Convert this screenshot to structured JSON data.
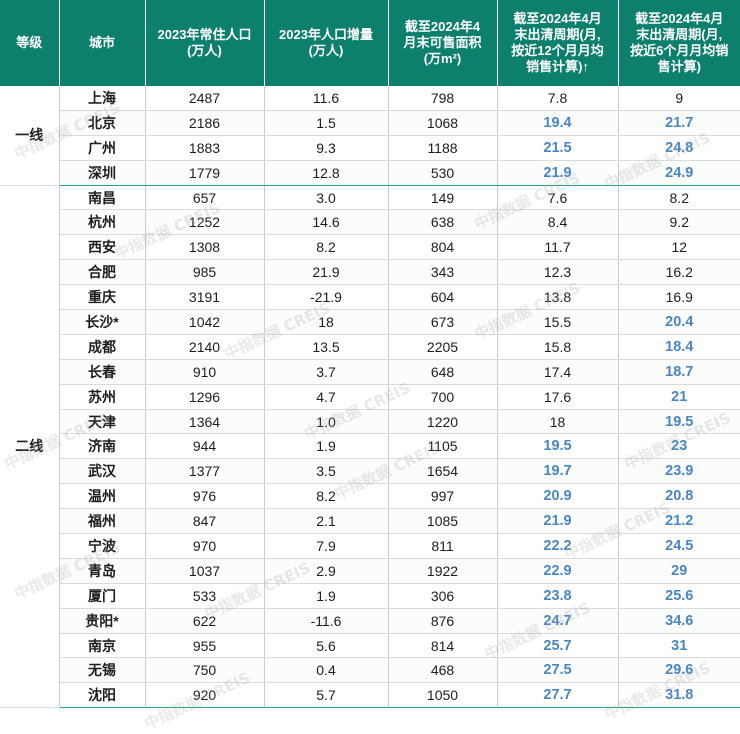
{
  "headers": {
    "tier": "等级",
    "city": "城市",
    "pop": "2023年常住人口\n(万人)",
    "inc": "2023年人口增量\n(万人)",
    "area": "截至2024年4\n月末可售面积\n(万m²)",
    "cycle12": "截至2024年4月\n末出清周期(月,\n按近12个月月均\n销售计算)",
    "cycle12_arrow": "↑",
    "cycle6": "截至2024年4月\n末出清周期(月,\n按近6个月月均销\n售计算)"
  },
  "tiers": {
    "t1": "一线",
    "t2": "二线"
  },
  "rows": [
    {
      "city": "上海",
      "pop": "2487",
      "inc": "11.6",
      "area": "798",
      "c12": "7.8",
      "c6": "9",
      "c12_hl": false,
      "c6_hl": false
    },
    {
      "city": "北京",
      "pop": "2186",
      "inc": "1.5",
      "area": "1068",
      "c12": "19.4",
      "c6": "21.7",
      "c12_hl": true,
      "c6_hl": true
    },
    {
      "city": "广州",
      "pop": "1883",
      "inc": "9.3",
      "area": "1188",
      "c12": "21.5",
      "c6": "24.8",
      "c12_hl": true,
      "c6_hl": true
    },
    {
      "city": "深圳",
      "pop": "1779",
      "inc": "12.8",
      "area": "530",
      "c12": "21.9",
      "c6": "24.9",
      "c12_hl": true,
      "c6_hl": true
    },
    {
      "city": "南昌",
      "pop": "657",
      "inc": "3.0",
      "area": "149",
      "c12": "7.6",
      "c6": "8.2",
      "c12_hl": false,
      "c6_hl": false
    },
    {
      "city": "杭州",
      "pop": "1252",
      "inc": "14.6",
      "area": "638",
      "c12": "8.4",
      "c6": "9.2",
      "c12_hl": false,
      "c6_hl": false
    },
    {
      "city": "西安",
      "pop": "1308",
      "inc": "8.2",
      "area": "804",
      "c12": "11.7",
      "c6": "12",
      "c12_hl": false,
      "c6_hl": false
    },
    {
      "city": "合肥",
      "pop": "985",
      "inc": "21.9",
      "area": "343",
      "c12": "12.3",
      "c6": "16.2",
      "c12_hl": false,
      "c6_hl": false
    },
    {
      "city": "重庆",
      "pop": "3191",
      "inc": "-21.9",
      "area": "604",
      "c12": "13.8",
      "c6": "16.9",
      "c12_hl": false,
      "c6_hl": false
    },
    {
      "city": "长沙*",
      "pop": "1042",
      "inc": "18",
      "area": "673",
      "c12": "15.5",
      "c6": "20.4",
      "c12_hl": false,
      "c6_hl": true
    },
    {
      "city": "成都",
      "pop": "2140",
      "inc": "13.5",
      "area": "2205",
      "c12": "15.8",
      "c6": "18.4",
      "c12_hl": false,
      "c6_hl": true
    },
    {
      "city": "长春",
      "pop": "910",
      "inc": "3.7",
      "area": "648",
      "c12": "17.4",
      "c6": "18.7",
      "c12_hl": false,
      "c6_hl": true
    },
    {
      "city": "苏州",
      "pop": "1296",
      "inc": "4.7",
      "area": "700",
      "c12": "17.6",
      "c6": "21",
      "c12_hl": false,
      "c6_hl": true
    },
    {
      "city": "天津",
      "pop": "1364",
      "inc": "1.0",
      "area": "1220",
      "c12": "18",
      "c6": "19.5",
      "c12_hl": false,
      "c6_hl": true
    },
    {
      "city": "济南",
      "pop": "944",
      "inc": "1.9",
      "area": "1105",
      "c12": "19.5",
      "c6": "23",
      "c12_hl": true,
      "c6_hl": true
    },
    {
      "city": "武汉",
      "pop": "1377",
      "inc": "3.5",
      "area": "1654",
      "c12": "19.7",
      "c6": "23.9",
      "c12_hl": true,
      "c6_hl": true
    },
    {
      "city": "温州",
      "pop": "976",
      "inc": "8.2",
      "area": "997",
      "c12": "20.9",
      "c6": "20.8",
      "c12_hl": true,
      "c6_hl": true
    },
    {
      "city": "福州",
      "pop": "847",
      "inc": "2.1",
      "area": "1085",
      "c12": "21.9",
      "c6": "21.2",
      "c12_hl": true,
      "c6_hl": true
    },
    {
      "city": "宁波",
      "pop": "970",
      "inc": "7.9",
      "area": "811",
      "c12": "22.2",
      "c6": "24.5",
      "c12_hl": true,
      "c6_hl": true
    },
    {
      "city": "青岛",
      "pop": "1037",
      "inc": "2.9",
      "area": "1922",
      "c12": "22.9",
      "c6": "29",
      "c12_hl": true,
      "c6_hl": true
    },
    {
      "city": "厦门",
      "pop": "533",
      "inc": "1.9",
      "area": "306",
      "c12": "23.8",
      "c6": "25.6",
      "c12_hl": true,
      "c6_hl": true
    },
    {
      "city": "贵阳*",
      "pop": "622",
      "inc": "-11.6",
      "area": "876",
      "c12": "24.7",
      "c6": "34.6",
      "c12_hl": true,
      "c6_hl": true
    },
    {
      "city": "南京",
      "pop": "955",
      "inc": "5.6",
      "area": "814",
      "c12": "25.7",
      "c6": "31",
      "c12_hl": true,
      "c6_hl": true
    },
    {
      "city": "无锡",
      "pop": "750",
      "inc": "0.4",
      "area": "468",
      "c12": "27.5",
      "c6": "29.6",
      "c12_hl": true,
      "c6_hl": true
    },
    {
      "city": "沈阳",
      "pop": "920",
      "inc": "5.7",
      "area": "1050",
      "c12": "27.7",
      "c6": "31.8",
      "c12_hl": true,
      "c6_hl": true
    }
  ],
  "watermark": "中指数据 CREIS"
}
